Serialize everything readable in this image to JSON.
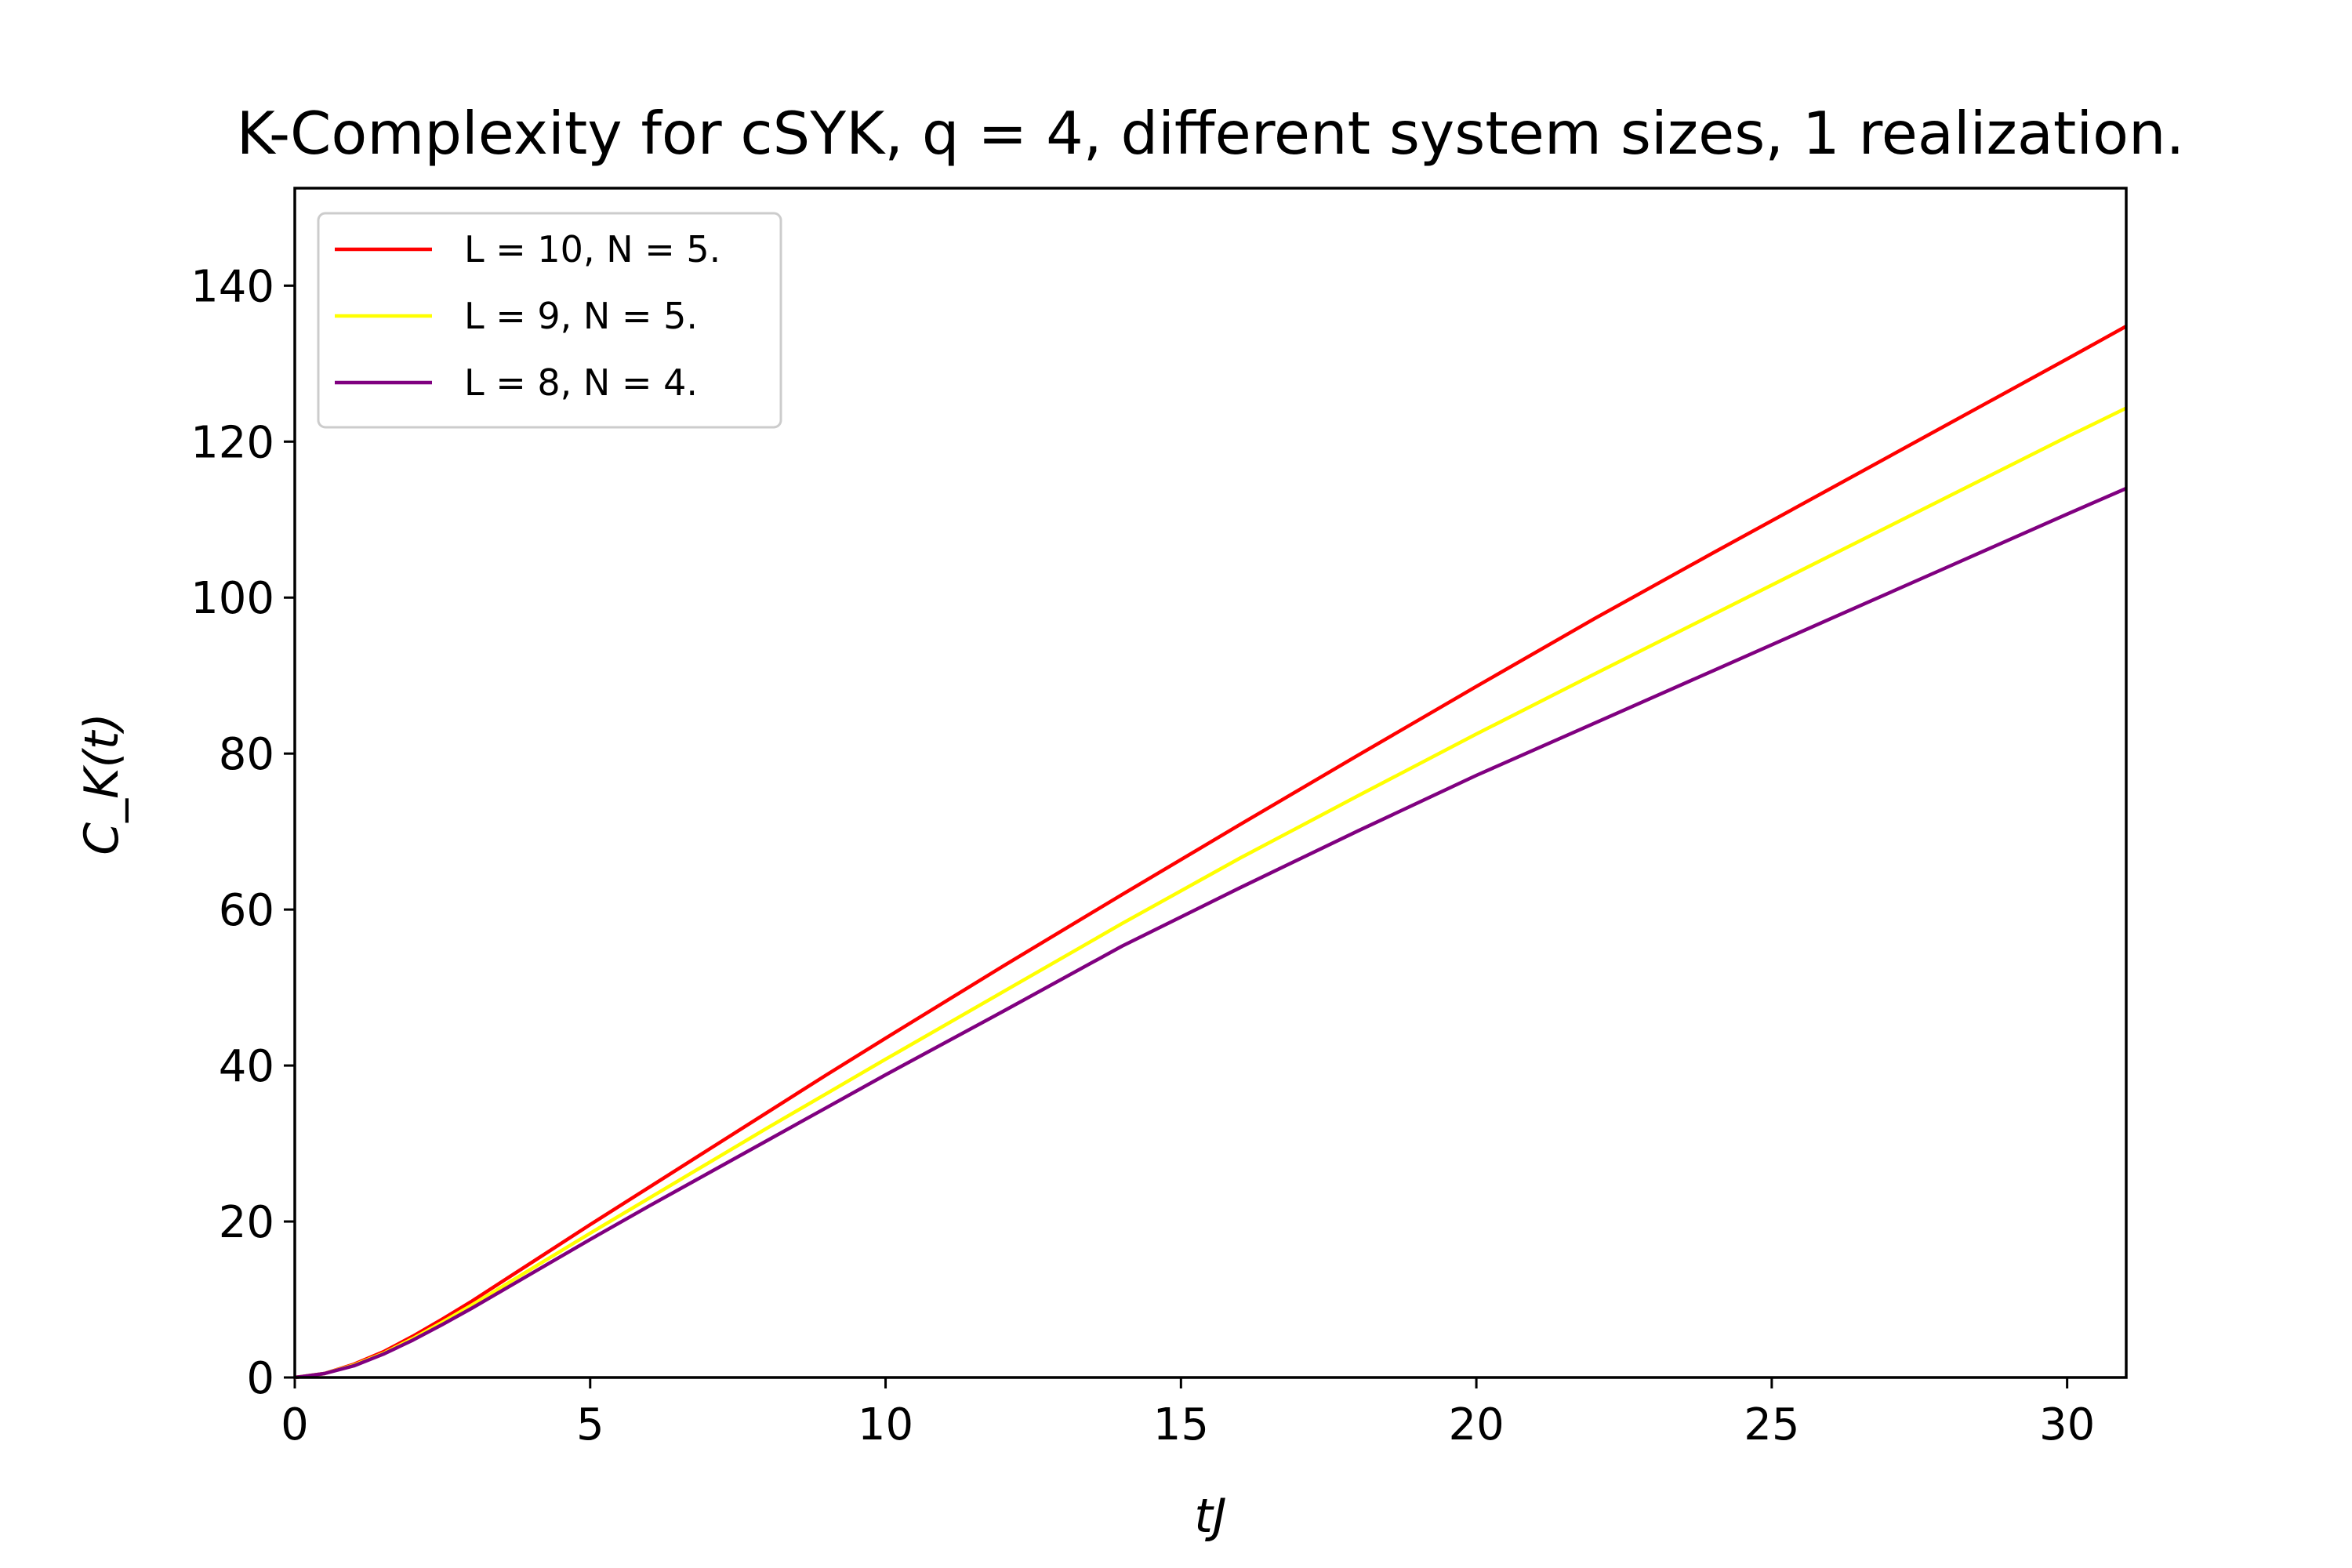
{
  "chart_data": {
    "type": "line",
    "title": "K-Complexity for cSYK, q = 4, different system sizes, 1 realization.",
    "xlabel": "tJ",
    "ylabel": "C_K(t)",
    "xlim": [
      0,
      31
    ],
    "ylim": [
      0,
      152.5
    ],
    "xticks": [
      0,
      5,
      10,
      15,
      20,
      25,
      30
    ],
    "yticks": [
      0,
      20,
      40,
      60,
      80,
      100,
      120,
      140
    ],
    "grid": false,
    "legend_position": "top-left",
    "x": [
      0,
      0.5,
      1,
      1.5,
      2,
      2.5,
      3,
      4,
      5,
      6,
      7,
      8,
      9,
      10,
      12,
      14,
      16,
      18,
      20,
      22,
      24,
      26,
      28,
      30,
      31
    ],
    "series": [
      {
        "name": "L = 10, N = 5.",
        "color": "#ff0000",
        "values": [
          0,
          0.5,
          1.7,
          3.3,
          5.3,
          7.5,
          9.8,
          14.7,
          19.6,
          24.4,
          29.2,
          34.0,
          38.8,
          43.5,
          52.8,
          61.9,
          70.9,
          79.8,
          88.6,
          97.3,
          105.7,
          114.0,
          122.3,
          130.6,
          134.8
        ]
      },
      {
        "name": "L = 9, N = 5.",
        "color": "#ffff00",
        "values": [
          0,
          0.5,
          1.6,
          3.1,
          5.0,
          7.1,
          9.3,
          13.9,
          18.5,
          23.0,
          27.5,
          32.0,
          36.4,
          40.8,
          49.5,
          58.2,
          66.6,
          74.6,
          82.5,
          90.2,
          97.8,
          105.4,
          113.0,
          120.6,
          124.3
        ]
      },
      {
        "name": "L = 8, N = 4.",
        "color": "#800080",
        "values": [
          0,
          0.5,
          1.5,
          3.0,
          4.8,
          6.8,
          8.9,
          13.3,
          17.7,
          22.0,
          26.2,
          30.4,
          34.6,
          38.8,
          47.0,
          55.3,
          62.8,
          70.1,
          77.2,
          83.9,
          90.6,
          97.3,
          104.0,
          110.7,
          114.0
        ]
      }
    ]
  }
}
